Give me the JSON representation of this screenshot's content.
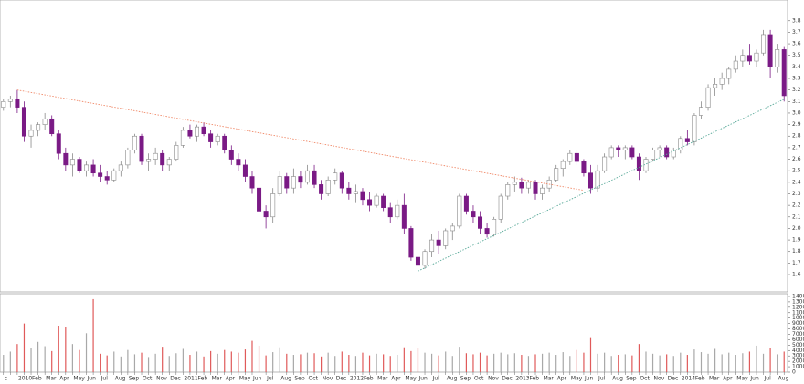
{
  "chart_data": [
    {
      "type": "candlestick",
      "ylim": [
        1.45,
        3.98
      ],
      "yticks": [
        1.6,
        1.7,
        1.8,
        1.9,
        {
          "value": 2,
          "label": "2.0"
        },
        2.1,
        2.2,
        2.3,
        2.4,
        2.5,
        2.6,
        2.7,
        2.8,
        2.9,
        {
          "value": 3,
          "label": "3.0"
        },
        3.1,
        3.2,
        3.3,
        3.4,
        3.5,
        3.6,
        3.7,
        3.8
      ],
      "up_color": "#ffffff",
      "up_edge_color": "#8a8a8a",
      "down_color": "#7a1a85",
      "candles": [
        [
          3.05,
          3.12,
          3.02,
          3.1
        ],
        [
          3.1,
          3.15,
          3.05,
          3.12
        ],
        [
          3.12,
          3.2,
          3.0,
          3.05
        ],
        [
          3.05,
          3.1,
          2.75,
          2.8
        ],
        [
          2.8,
          2.9,
          2.7,
          2.85
        ],
        [
          2.85,
          2.92,
          2.8,
          2.9
        ],
        [
          2.9,
          3.0,
          2.85,
          2.95
        ],
        [
          2.95,
          2.98,
          2.8,
          2.82
        ],
        [
          2.82,
          2.85,
          2.6,
          2.65
        ],
        [
          2.65,
          2.7,
          2.5,
          2.55
        ],
        [
          2.55,
          2.65,
          2.45,
          2.6
        ],
        [
          2.6,
          2.62,
          2.48,
          2.5
        ],
        [
          2.5,
          2.58,
          2.45,
          2.55
        ],
        [
          2.55,
          2.6,
          2.45,
          2.48
        ],
        [
          2.48,
          2.55,
          2.4,
          2.45
        ],
        [
          2.45,
          2.5,
          2.38,
          2.42
        ],
        [
          2.42,
          2.52,
          2.4,
          2.5
        ],
        [
          2.5,
          2.58,
          2.45,
          2.55
        ],
        [
          2.55,
          2.7,
          2.52,
          2.68
        ],
        [
          2.68,
          2.82,
          2.65,
          2.8
        ],
        [
          2.8,
          2.82,
          2.55,
          2.58
        ],
        [
          2.58,
          2.65,
          2.5,
          2.6
        ],
        [
          2.6,
          2.7,
          2.55,
          2.65
        ],
        [
          2.65,
          2.68,
          2.5,
          2.55
        ],
        [
          2.55,
          2.62,
          2.5,
          2.6
        ],
        [
          2.6,
          2.75,
          2.58,
          2.72
        ],
        [
          2.72,
          2.88,
          2.7,
          2.85
        ],
        [
          2.85,
          2.9,
          2.78,
          2.8
        ],
        [
          2.8,
          2.9,
          2.75,
          2.88
        ],
        [
          2.88,
          2.92,
          2.8,
          2.82
        ],
        [
          2.82,
          2.85,
          2.7,
          2.75
        ],
        [
          2.75,
          2.82,
          2.72,
          2.8
        ],
        [
          2.8,
          2.82,
          2.65,
          2.68
        ],
        [
          2.68,
          2.72,
          2.55,
          2.6
        ],
        [
          2.6,
          2.65,
          2.5,
          2.55
        ],
        [
          2.55,
          2.6,
          2.4,
          2.45
        ],
        [
          2.45,
          2.5,
          2.3,
          2.35
        ],
        [
          2.35,
          2.4,
          2.1,
          2.15
        ],
        [
          2.15,
          2.2,
          2.0,
          2.1
        ],
        [
          2.1,
          2.35,
          2.05,
          2.3
        ],
        [
          2.3,
          2.5,
          2.28,
          2.45
        ],
        [
          2.45,
          2.48,
          2.3,
          2.35
        ],
        [
          2.35,
          2.52,
          2.3,
          2.45
        ],
        [
          2.45,
          2.5,
          2.35,
          2.4
        ],
        [
          2.4,
          2.55,
          2.38,
          2.5
        ],
        [
          2.5,
          2.55,
          2.35,
          2.38
        ],
        [
          2.38,
          2.42,
          2.25,
          2.3
        ],
        [
          2.3,
          2.45,
          2.28,
          2.42
        ],
        [
          2.42,
          2.52,
          2.38,
          2.48
        ],
        [
          2.48,
          2.5,
          2.3,
          2.35
        ],
        [
          2.35,
          2.4,
          2.25,
          2.3
        ],
        [
          2.3,
          2.38,
          2.22,
          2.32
        ],
        [
          2.32,
          2.35,
          2.2,
          2.25
        ],
        [
          2.25,
          2.32,
          2.15,
          2.2
        ],
        [
          2.2,
          2.3,
          2.18,
          2.28
        ],
        [
          2.28,
          2.3,
          2.15,
          2.18
        ],
        [
          2.18,
          2.22,
          2.05,
          2.1
        ],
        [
          2.1,
          2.25,
          2.08,
          2.2
        ],
        [
          2.2,
          2.3,
          1.95,
          2.0
        ],
        [
          2.0,
          2.02,
          1.72,
          1.75
        ],
        [
          1.75,
          1.85,
          1.63,
          1.68
        ],
        [
          1.68,
          1.82,
          1.65,
          1.8
        ],
        [
          1.8,
          1.95,
          1.75,
          1.9
        ],
        [
          1.9,
          1.98,
          1.78,
          1.85
        ],
        [
          1.85,
          2.0,
          1.82,
          1.98
        ],
        [
          1.98,
          2.05,
          1.9,
          2.02
        ],
        [
          2.02,
          2.3,
          2.0,
          2.28
        ],
        [
          2.28,
          2.3,
          2.12,
          2.15
        ],
        [
          2.15,
          2.2,
          2.05,
          2.1
        ],
        [
          2.1,
          2.15,
          1.95,
          2.0
        ],
        [
          2.0,
          2.05,
          1.92,
          1.95
        ],
        [
          1.95,
          2.1,
          1.93,
          2.08
        ],
        [
          2.08,
          2.3,
          2.05,
          2.28
        ],
        [
          2.28,
          2.4,
          2.25,
          2.38
        ],
        [
          2.38,
          2.45,
          2.32,
          2.4
        ],
        [
          2.4,
          2.44,
          2.3,
          2.35
        ],
        [
          2.35,
          2.42,
          2.3,
          2.4
        ],
        [
          2.4,
          2.42,
          2.25,
          2.3
        ],
        [
          2.3,
          2.38,
          2.25,
          2.35
        ],
        [
          2.35,
          2.45,
          2.32,
          2.42
        ],
        [
          2.42,
          2.55,
          2.4,
          2.52
        ],
        [
          2.52,
          2.6,
          2.45,
          2.58
        ],
        [
          2.58,
          2.68,
          2.55,
          2.65
        ],
        [
          2.65,
          2.68,
          2.55,
          2.58
        ],
        [
          2.58,
          2.6,
          2.45,
          2.48
        ],
        [
          2.48,
          2.55,
          2.3,
          2.35
        ],
        [
          2.35,
          2.55,
          2.32,
          2.5
        ],
        [
          2.5,
          2.65,
          2.48,
          2.62
        ],
        [
          2.62,
          2.72,
          2.6,
          2.7
        ],
        [
          2.7,
          2.72,
          2.62,
          2.68
        ],
        [
          2.68,
          2.72,
          2.6,
          2.7
        ],
        [
          2.7,
          2.72,
          2.6,
          2.62
        ],
        [
          2.62,
          2.65,
          2.42,
          2.5
        ],
        [
          2.5,
          2.62,
          2.48,
          2.6
        ],
        [
          2.6,
          2.7,
          2.58,
          2.68
        ],
        [
          2.68,
          2.72,
          2.62,
          2.7
        ],
        [
          2.7,
          2.72,
          2.6,
          2.62
        ],
        [
          2.62,
          2.7,
          2.6,
          2.68
        ],
        [
          2.68,
          2.8,
          2.65,
          2.78
        ],
        [
          2.78,
          2.85,
          2.72,
          2.75
        ],
        [
          2.75,
          3.0,
          2.72,
          2.98
        ],
        [
          2.98,
          3.1,
          2.95,
          3.05
        ],
        [
          3.05,
          3.25,
          3.02,
          3.22
        ],
        [
          3.22,
          3.3,
          3.15,
          3.25
        ],
        [
          3.25,
          3.35,
          3.2,
          3.3
        ],
        [
          3.3,
          3.4,
          3.25,
          3.38
        ],
        [
          3.38,
          3.5,
          3.35,
          3.45
        ],
        [
          3.45,
          3.55,
          3.4,
          3.5
        ],
        [
          3.5,
          3.6,
          3.42,
          3.45
        ],
        [
          3.45,
          3.55,
          3.4,
          3.52
        ],
        [
          3.52,
          3.72,
          3.5,
          3.68
        ],
        [
          3.68,
          3.72,
          3.3,
          3.4
        ],
        [
          3.4,
          3.6,
          3.35,
          3.55
        ],
        [
          3.55,
          3.58,
          3.1,
          3.15
        ]
      ],
      "trendlines": [
        {
          "color": "#f08a6a",
          "x": [
            2,
            84
          ],
          "y": [
            3.2,
            2.33
          ]
        },
        {
          "color": "#5aaa9a",
          "x": [
            60,
            113
          ],
          "y": [
            1.63,
            3.12
          ]
        }
      ]
    },
    {
      "type": "bar",
      "ylim": [
        0,
        14500
      ],
      "yticks": [
        0,
        1000,
        2000,
        3000,
        4000,
        5000,
        6000,
        7000,
        8000,
        9000,
        10000,
        11000,
        12000,
        13000,
        14000
      ],
      "down_color": "#e05a5a",
      "up_color": "#a8a8a8",
      "categories": [
        "c",
        null,
        "2010",
        null,
        "Feb",
        null,
        "Mar",
        null,
        "Apr",
        null,
        "May",
        null,
        "Jun",
        null,
        "Jul",
        null,
        "Aug",
        null,
        "Sep",
        null,
        "Oct",
        null,
        "Nov",
        null,
        "Dec",
        null,
        "2011",
        null,
        "Feb",
        null,
        "Mar",
        null,
        "Apr",
        null,
        "May",
        null,
        "Jun",
        null,
        "Jul",
        null,
        "Aug",
        null,
        "Sep",
        null,
        "Oct",
        null,
        "Nov",
        null,
        "Dec",
        null,
        "2012",
        null,
        "Feb",
        null,
        "Mar",
        null,
        "Apr",
        null,
        "May",
        null,
        "Jun",
        null,
        "Jul",
        null,
        "Aug",
        null,
        "Sep",
        null,
        "Oct",
        null,
        "Nov",
        null,
        "Dec",
        null,
        "2013",
        null,
        "Feb",
        null,
        "Mar",
        null,
        "Apr",
        null,
        "May",
        null,
        "Jun",
        null,
        "Jul",
        null,
        "Aug",
        null,
        "Sep",
        null,
        "Oct",
        null,
        "Nov",
        null,
        "Dec",
        null,
        "2014",
        null,
        "Feb",
        null,
        "Mar",
        null,
        "Apr",
        null,
        "May",
        null,
        "Jun",
        null,
        "Jul",
        null,
        "Aug",
        null
      ],
      "values": [
        3200,
        3800,
        5200,
        9000,
        4500,
        5600,
        4800,
        3900,
        8600,
        8400,
        5200,
        4100,
        7200,
        13500,
        3400,
        3100,
        3800,
        2900,
        4100,
        3300,
        3600,
        2800,
        3400,
        4700,
        3000,
        3500,
        4300,
        3200,
        3800,
        2900,
        3900,
        3400,
        4100,
        3800,
        3600,
        4200,
        5800,
        4900,
        3100,
        3700,
        4600,
        3400,
        3200,
        3300,
        3600,
        3500,
        2900,
        3600,
        3000,
        3800,
        3200,
        3000,
        3600,
        3100,
        3400,
        3300,
        3000,
        3200,
        4600,
        3900,
        4400,
        3600,
        3400,
        3100,
        3800,
        3000,
        4700,
        3500,
        3300,
        3600,
        3100,
        3400,
        3600,
        3300,
        3500,
        3200,
        3000,
        3300,
        3400,
        3600,
        3200,
        3700,
        3000,
        4100,
        3600,
        6300,
        3400,
        3600,
        3000,
        3200,
        3300,
        3100,
        5200,
        3800,
        3400,
        3100,
        3300,
        3000,
        3600,
        3200,
        4200,
        3700,
        3400,
        4300,
        3300,
        3600,
        3200,
        3500,
        3800,
        4900,
        3400,
        4400,
        3300,
        3800
      ]
    }
  ]
}
